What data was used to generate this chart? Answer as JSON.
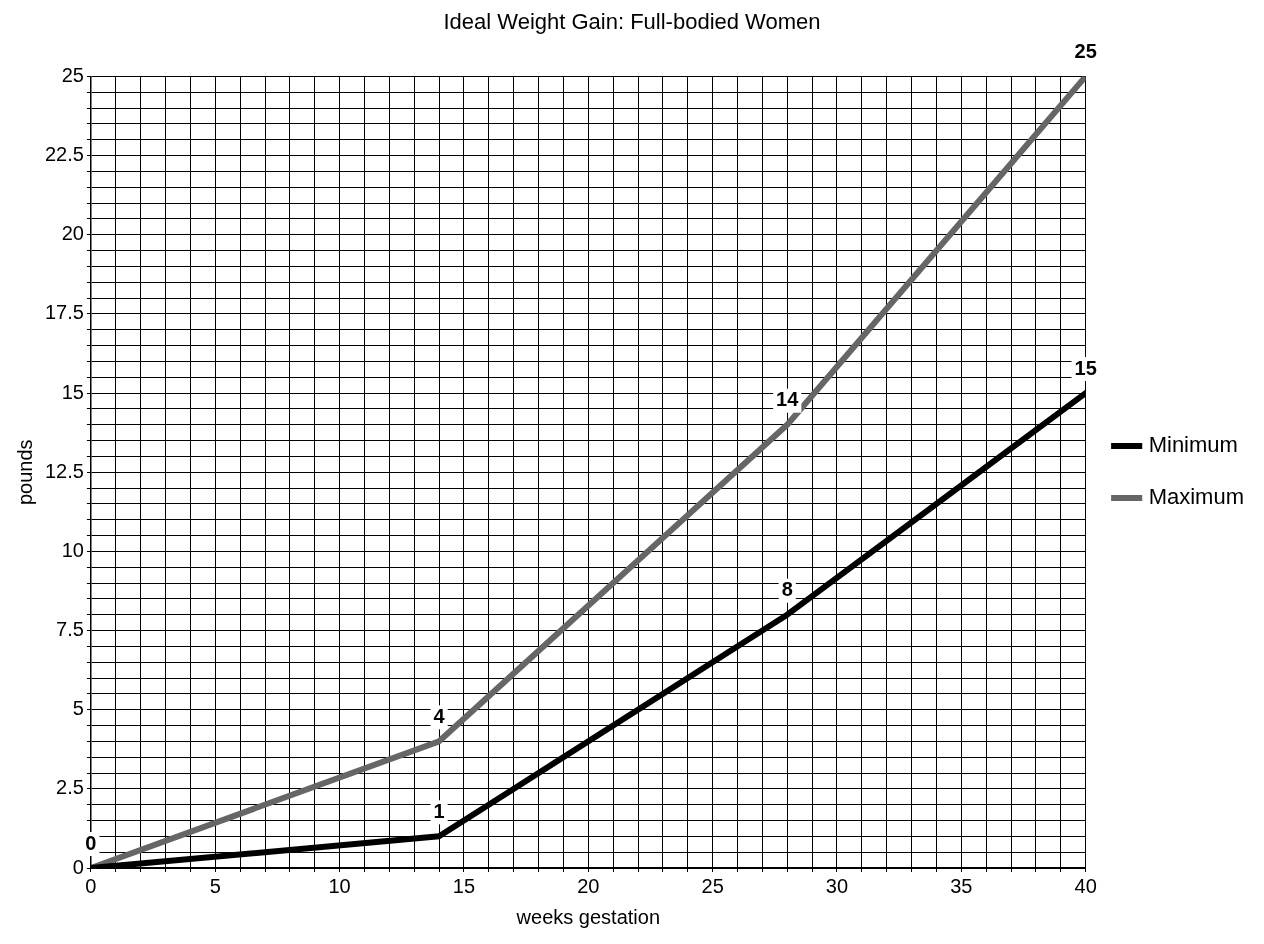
{
  "chart_data": {
    "type": "line",
    "title": "Ideal Weight Gain: Full-bodied Women",
    "xlabel": "weeks gestation",
    "ylabel": "pounds",
    "x": [
      0,
      14,
      28,
      40
    ],
    "series": [
      {
        "name": "Minimum",
        "color": "#000000",
        "values": [
          0,
          1,
          8,
          15
        ],
        "value_labels": [
          "0",
          "1",
          "8",
          "15"
        ]
      },
      {
        "name": "Maximum",
        "color": "#666666",
        "values": [
          0,
          4,
          14,
          25
        ],
        "value_labels": [
          null,
          "4",
          "14",
          "25"
        ]
      }
    ],
    "xlim": [
      0,
      40
    ],
    "xticks": [
      0,
      {
        "value": 1,
        "label": null
      },
      {
        "value": 2,
        "label": null
      },
      {
        "value": 3,
        "label": null
      },
      {
        "value": 4,
        "label": null
      },
      5,
      {
        "value": 6,
        "label": null
      },
      {
        "value": 7,
        "label": null
      },
      {
        "value": 8,
        "label": null
      },
      {
        "value": 9,
        "label": null
      },
      10,
      {
        "value": 11,
        "label": null
      },
      {
        "value": 12,
        "label": null
      },
      {
        "value": 13,
        "label": null
      },
      {
        "value": 14,
        "label": null
      },
      15,
      {
        "value": 16,
        "label": null
      },
      {
        "value": 17,
        "label": null
      },
      {
        "value": 18,
        "label": null
      },
      {
        "value": 19,
        "label": null
      },
      20,
      {
        "value": 21,
        "label": null
      },
      {
        "value": 22,
        "label": null
      },
      {
        "value": 23,
        "label": null
      },
      {
        "value": 24,
        "label": null
      },
      25,
      {
        "value": 26,
        "label": null
      },
      {
        "value": 27,
        "label": null
      },
      {
        "value": 28,
        "label": null
      },
      {
        "value": 29,
        "label": null
      },
      30,
      {
        "value": 31,
        "label": null
      },
      {
        "value": 32,
        "label": null
      },
      {
        "value": 33,
        "label": null
      },
      {
        "value": 34,
        "label": null
      },
      35,
      {
        "value": 36,
        "label": null
      },
      {
        "value": 37,
        "label": null
      },
      {
        "value": 38,
        "label": null
      },
      {
        "value": 39,
        "label": null
      },
      40
    ],
    "ylim": [
      0,
      25
    ],
    "yticks": [
      0,
      {
        "value": 0.5,
        "label": null
      },
      {
        "value": 1,
        "label": null
      },
      {
        "value": 1.5,
        "label": null
      },
      {
        "value": 2,
        "label": null
      },
      2.5,
      {
        "value": 3,
        "label": null
      },
      {
        "value": 3.5,
        "label": null
      },
      {
        "value": 4,
        "label": null
      },
      {
        "value": 4.5,
        "label": null
      },
      5,
      {
        "value": 5.5,
        "label": null
      },
      {
        "value": 6,
        "label": null
      },
      {
        "value": 6.5,
        "label": null
      },
      {
        "value": 7,
        "label": null
      },
      7.5,
      {
        "value": 8,
        "label": null
      },
      {
        "value": 8.5,
        "label": null
      },
      {
        "value": 9,
        "label": null
      },
      {
        "value": 9.5,
        "label": null
      },
      10,
      {
        "value": 10.5,
        "label": null
      },
      {
        "value": 11,
        "label": null
      },
      {
        "value": 11.5,
        "label": null
      },
      {
        "value": 12,
        "label": null
      },
      12.5,
      {
        "value": 13,
        "label": null
      },
      {
        "value": 13.5,
        "label": null
      },
      {
        "value": 14,
        "label": null
      },
      {
        "value": 14.5,
        "label": null
      },
      15,
      {
        "value": 15.5,
        "label": null
      },
      {
        "value": 16,
        "label": null
      },
      {
        "value": 16.5,
        "label": null
      },
      {
        "value": 17,
        "label": null
      },
      17.5,
      {
        "value": 18,
        "label": null
      },
      {
        "value": 18.5,
        "label": null
      },
      {
        "value": 19,
        "label": null
      },
      {
        "value": 19.5,
        "label": null
      },
      20,
      {
        "value": 20.5,
        "label": null
      },
      {
        "value": 21,
        "label": null
      },
      {
        "value": 21.5,
        "label": null
      },
      {
        "value": 22,
        "label": null
      },
      22.5,
      {
        "value": 23,
        "label": null
      },
      {
        "value": 23.5,
        "label": null
      },
      {
        "value": 24,
        "label": null
      },
      {
        "value": 24.5,
        "label": null
      },
      25
    ],
    "grid": true,
    "legend": "right",
    "marker": "none",
    "line_style": "solid"
  }
}
